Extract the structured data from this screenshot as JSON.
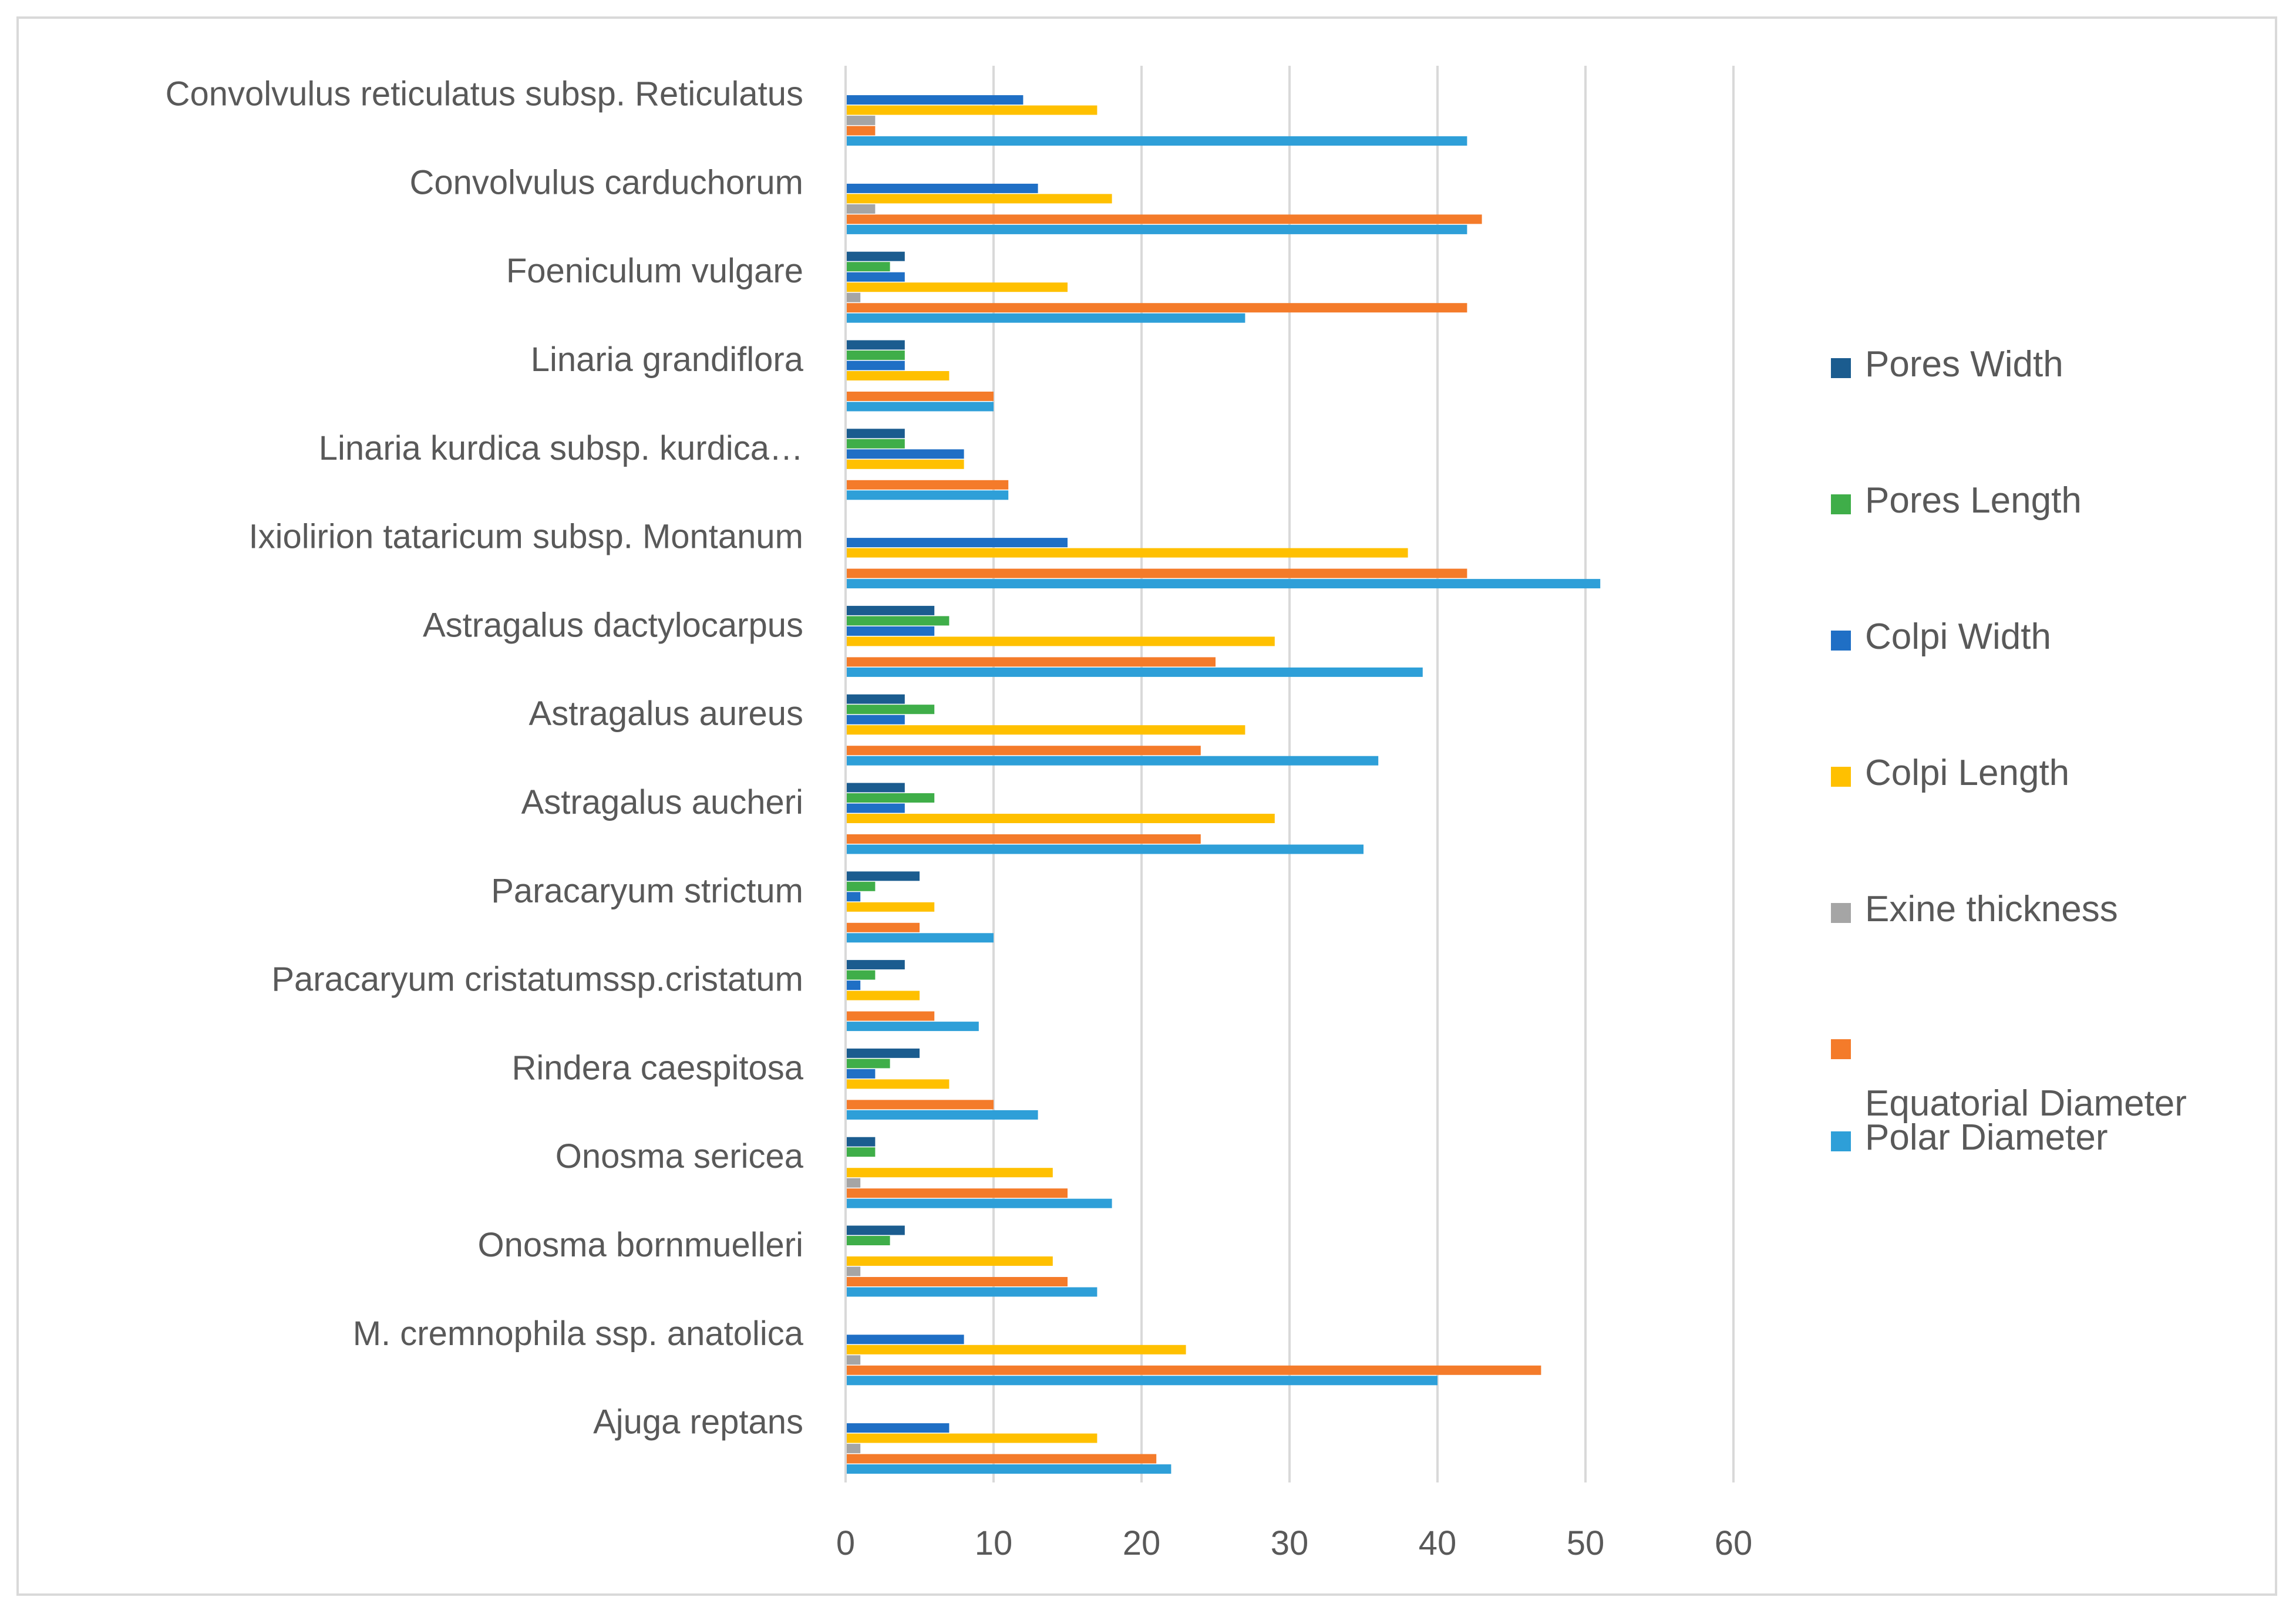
{
  "chart_data": {
    "type": "bar",
    "orientation": "horizontal",
    "title": "",
    "xlabel": "",
    "ylabel": "",
    "xlim": [
      0,
      60
    ],
    "xticks": [
      0,
      10,
      20,
      30,
      40,
      50,
      60
    ],
    "grid": true,
    "legend_position": "right",
    "categories": [
      "Ajuga reptans",
      "M. cremnophila ssp. anatolica",
      "Onosma bornmuelleri",
      "Onosma sericea",
      "Rindera caespitosa",
      "Paracaryum cristatumssp.cristatum",
      "Paracaryum strictum",
      "Astragalus aucheri",
      "Astragalus  aureus",
      "Astragalus dactylocarpus",
      "Ixiolirion tataricum subsp. Montanum",
      "Linaria kurdica  subsp. kurdica…",
      "Linaria grandiflora",
      "Foeniculum vulgare",
      "Convolvulus carduchorum",
      "Convolvulus reticulatus subsp. Reticulatus"
    ],
    "series": [
      {
        "name": "Polar Diameter",
        "color": "#2e9fd8",
        "values": [
          22,
          40,
          17,
          18,
          13,
          9,
          10,
          35,
          36,
          39,
          51,
          11,
          10,
          27,
          42,
          42
        ]
      },
      {
        "name": "Equatorial Diameter",
        "color": "#f47b2a",
        "values": [
          21,
          47,
          15,
          15,
          10,
          6,
          5,
          24,
          24,
          25,
          42,
          11,
          10,
          42,
          43,
          2
        ]
      },
      {
        "name": "Exine thickness",
        "color": "#a5a5a5",
        "values": [
          1,
          1,
          1,
          1,
          0,
          0,
          0,
          0,
          0,
          0,
          0,
          0,
          0,
          1,
          2,
          2
        ]
      },
      {
        "name": "Colpi Length",
        "color": "#ffc000",
        "values": [
          17,
          23,
          14,
          14,
          7,
          5,
          6,
          29,
          27,
          29,
          38,
          8,
          7,
          15,
          18,
          17
        ]
      },
      {
        "name": "Colpi Width",
        "color": "#1f6fc5",
        "values": [
          7,
          8,
          0,
          0,
          2,
          1,
          1,
          4,
          4,
          6,
          15,
          8,
          4,
          4,
          13,
          12
        ]
      },
      {
        "name": "Pores Length",
        "color": "#3fae49",
        "values": [
          0,
          0,
          3,
          2,
          3,
          2,
          2,
          6,
          6,
          7,
          0,
          4,
          4,
          3,
          0,
          0
        ]
      },
      {
        "name": "Pores Width",
        "color": "#1b5c8f",
        "values": [
          0,
          0,
          4,
          2,
          5,
          4,
          5,
          4,
          4,
          6,
          0,
          4,
          4,
          4,
          0,
          0
        ]
      }
    ],
    "legend": [
      {
        "name": "Pores Width",
        "color": "#1b5c8f"
      },
      {
        "name": "Pores Length",
        "color": "#3fae49"
      },
      {
        "name": "Colpi Width",
        "color": "#1f6fc5"
      },
      {
        "name": "Colpi Length",
        "color": "#ffc000"
      },
      {
        "name": "Exine thickness",
        "color": "#a5a5a5"
      },
      {
        "name": "Equatorial Diameter",
        "color": "#f47b2a"
      },
      {
        "name": "Polar Diameter",
        "color": "#2e9fd8"
      }
    ]
  }
}
